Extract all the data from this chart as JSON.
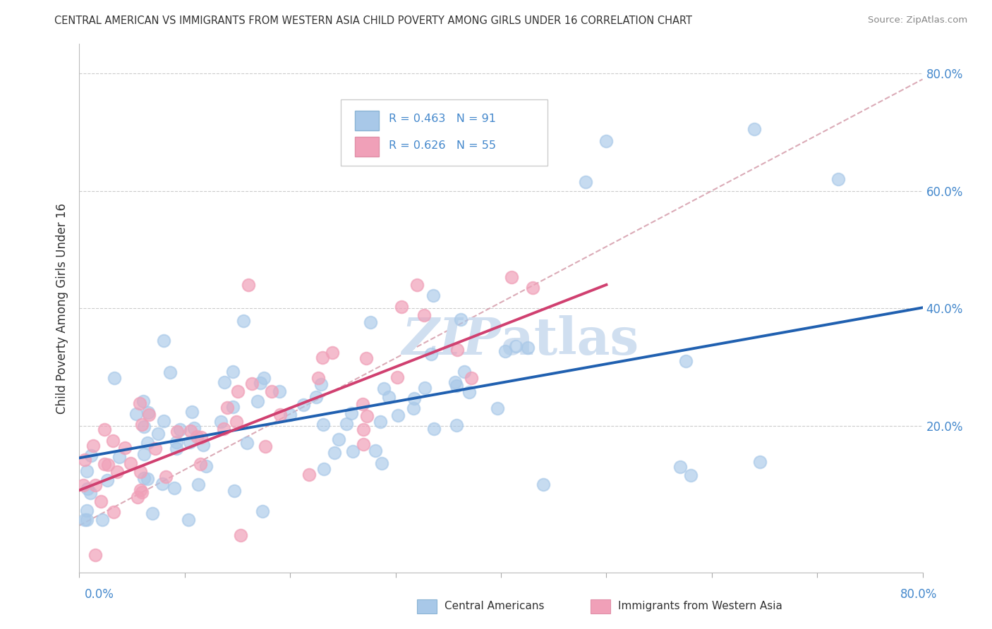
{
  "title": "CENTRAL AMERICAN VS IMMIGRANTS FROM WESTERN ASIA CHILD POVERTY AMONG GIRLS UNDER 16 CORRELATION CHART",
  "source": "Source: ZipAtlas.com",
  "ylabel": "Child Poverty Among Girls Under 16",
  "blue_color": "#a8c8e8",
  "pink_color": "#f0a0b8",
  "blue_line_color": "#2060b0",
  "pink_line_color": "#d04070",
  "ref_line_color": "#e08090",
  "watermark_color": "#d0dff0",
  "background_color": "#ffffff",
  "grid_color": "#cccccc",
  "axis_label_color": "#4488cc",
  "text_color": "#333333",
  "xlim": [
    0.0,
    0.8
  ],
  "ylim": [
    -0.05,
    0.85
  ],
  "blue_slope": 0.32,
  "blue_intercept": 0.145,
  "pink_slope": 0.7,
  "pink_intercept": 0.09,
  "ref_slope": 0.95,
  "ref_intercept": 0.03
}
